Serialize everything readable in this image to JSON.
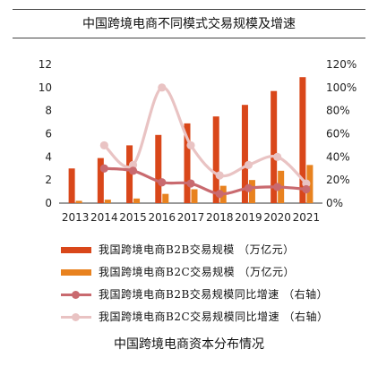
{
  "header": {
    "title": "中国跨境电商不同模式交易规模及增速"
  },
  "caption": "中国跨境电商资本分布情况",
  "colors": {
    "b2b_bar": "#d9471a",
    "b2c_bar": "#e8821f",
    "b2b_line": "#c96a6f",
    "b2c_line": "#e9c3c3"
  },
  "chart_data": {
    "type": "bar",
    "title": "中国跨境电商不同模式交易规模及增速",
    "categories": [
      "2013",
      "2014",
      "2015",
      "2016",
      "2017",
      "2018",
      "2019",
      "2020",
      "2021"
    ],
    "y_left": {
      "lim": [
        0,
        12
      ],
      "ticks": [
        "0",
        "2",
        "4",
        "6",
        "8",
        "10",
        "12"
      ]
    },
    "y_right": {
      "lim": [
        0,
        1.2
      ],
      "ticks": [
        "0%",
        "20%",
        "40%",
        "60%",
        "80%",
        "100%",
        "120%"
      ]
    },
    "series": [
      {
        "name": "我国跨境电商B2B交易规模 （万亿元）",
        "kind": "bar",
        "axis": "left",
        "values": [
          3.0,
          3.9,
          5.0,
          5.9,
          6.9,
          7.5,
          8.5,
          9.7,
          10.9
        ]
      },
      {
        "name": "我国跨境电商B2C交易规模 （万亿元）",
        "kind": "bar",
        "axis": "left",
        "values": [
          0.2,
          0.3,
          0.4,
          0.8,
          1.2,
          1.5,
          2.0,
          2.8,
          3.3
        ]
      },
      {
        "name": "我国跨境电商B2B交易规模同比增速 （右轴）",
        "kind": "line",
        "axis": "right",
        "values": [
          null,
          0.3,
          0.28,
          0.18,
          0.17,
          0.08,
          0.13,
          0.14,
          0.12
        ]
      },
      {
        "name": "我国跨境电商B2C交易规模同比增速 （右轴）",
        "kind": "line",
        "axis": "right",
        "values": [
          null,
          0.5,
          0.33,
          1.0,
          0.5,
          0.24,
          0.33,
          0.4,
          0.17
        ]
      }
    ],
    "grid": false,
    "legend_position": "bottom"
  }
}
